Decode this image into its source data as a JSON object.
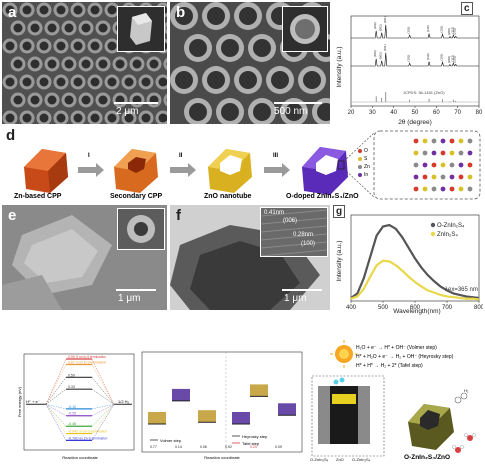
{
  "panels": {
    "a": {
      "label": "a",
      "scale": "2 μm"
    },
    "b": {
      "label": "b",
      "scale": "500 nm"
    },
    "c": {
      "label": "c"
    },
    "d": {
      "label": "d"
    },
    "e": {
      "label": "e",
      "scale": "1 μm"
    },
    "f": {
      "label": "f",
      "scale": "1 μm",
      "d1": "0.41nm",
      "hkl1": "(006)",
      "d2": "0.28nm",
      "hkl2": "(100)"
    },
    "g": {
      "label": "g"
    }
  },
  "schematic": {
    "steps": [
      {
        "caption": "Zn-based CPP",
        "arrow_after": "I"
      },
      {
        "caption": "Secondary CPP",
        "arrow_after": "II"
      },
      {
        "caption": "ZnO nanotube",
        "arrow_after": "III"
      },
      {
        "caption": "O-doped ZnIn₂S₄/ZnO",
        "arrow_after": ""
      }
    ],
    "legend": [
      "O",
      "S",
      "Zn",
      "In"
    ],
    "legend_colors": [
      "#d83a2a",
      "#d8c028",
      "#8a8a8a",
      "#7030a0"
    ]
  },
  "chart_data": [
    {
      "type": "line",
      "panel": "c",
      "xlabel": "2θ (degree)",
      "ylabel": "Intensity (a.u.)",
      "xlim": [
        20,
        80
      ],
      "xticks": [
        20,
        30,
        40,
        50,
        60,
        70,
        80
      ],
      "reference_label": "JCPDS: 36-1451 (ZnO)",
      "peak_positions": [
        31.8,
        34.4,
        36.3,
        47.5,
        56.6,
        62.9,
        66.4,
        68.0,
        69.1
      ],
      "peak_labels": [
        "(100)",
        "(002)",
        "(101)",
        "(102)",
        "(110)",
        "(103)",
        "(200)",
        "(112)",
        "(201)"
      ],
      "series": [
        {
          "values": [
            0.3,
            0.22,
            0.55,
            0.12,
            0.18,
            0.16,
            0.06,
            0.12,
            0.07
          ],
          "color": "#111111"
        },
        {
          "values": [
            0.3,
            0.22,
            0.55,
            0.12,
            0.18,
            0.16,
            0.06,
            0.12,
            0.07
          ],
          "color": "#111111"
        },
        {
          "values": [
            0.57,
            0.42,
            1.0,
            0.22,
            0.32,
            0.28,
            0.05,
            0.23,
            0.11
          ],
          "color": "#666666"
        }
      ]
    },
    {
      "type": "line",
      "panel": "g",
      "xlabel": "Wavelength(nm)",
      "ylabel": "Intensity (a.u.)",
      "xlim": [
        400,
        800
      ],
      "xticks": [
        400,
        500,
        600,
        700,
        800
      ],
      "annotation": "λex=365 nm",
      "series": [
        {
          "name": "O-ZnIn₂S₄",
          "color": "#555555",
          "x": [
            400,
            420,
            440,
            460,
            480,
            500,
            520,
            540,
            560,
            580,
            600,
            620,
            640,
            660,
            680,
            700,
            720,
            740,
            760,
            780,
            800
          ],
          "y": [
            0.04,
            0.1,
            0.3,
            0.58,
            0.86,
            0.98,
            1.0,
            0.95,
            0.84,
            0.7,
            0.56,
            0.44,
            0.34,
            0.26,
            0.19,
            0.14,
            0.1,
            0.08,
            0.06,
            0.05,
            0.04
          ]
        },
        {
          "name": "ZnIn₂S₄",
          "color": "#e8d84a",
          "x": [
            400,
            420,
            440,
            460,
            480,
            500,
            520,
            540,
            560,
            580,
            600,
            620,
            640,
            660,
            680,
            700,
            720,
            740,
            760,
            780,
            800
          ],
          "y": [
            0.03,
            0.06,
            0.16,
            0.32,
            0.47,
            0.53,
            0.52,
            0.47,
            0.4,
            0.32,
            0.25,
            0.19,
            0.14,
            0.11,
            0.08,
            0.06,
            0.05,
            0.04,
            0.03,
            0.03,
            0.02
          ]
        }
      ]
    },
    {
      "type": "line",
      "panel": "h1",
      "xlabel": "Reaction coordinate",
      "ylabel": "Free energy (eV)",
      "left_label": "H⁺ + e⁻",
      "right_label": "1/2 H₂",
      "levels": [
        {
          "value": 0.99,
          "color": "#d84040",
          "label": "S on In-S termination"
        },
        {
          "value": 0.87,
          "color": "#e89a3a",
          "label": "O on In-S termination"
        },
        {
          "value": 0.59,
          "color": "#333333",
          "label": ""
        },
        {
          "value": 0.33,
          "color": "#333333",
          "label": ""
        },
        {
          "value": -0.1,
          "color": "#2a8ad8",
          "label": ""
        },
        {
          "value": -0.25,
          "color": "#8a4ac8",
          "label": ""
        },
        {
          "value": -0.48,
          "color": "#3aa83a",
          "label": ""
        },
        {
          "value": -0.64,
          "color": "#e8c020",
          "label": "S on Zn-S termination"
        },
        {
          "value": -0.79,
          "color": "#3a3ad8",
          "label": "O on Zn-S termination"
        }
      ]
    },
    {
      "type": "line",
      "panel": "h2",
      "xlabel": "Reaction coordinate",
      "legend": [
        "Volmer step",
        "Heyrosky step",
        "Tafel step"
      ],
      "points": [
        0.77,
        0.14,
        0.06,
        0.92,
        0.29,
        0.09
      ]
    }
  ],
  "mechanism": {
    "steps": [
      "H₂O + e⁻ → H* + OH⁻ (Volmer step)",
      "H* + H₂O + e⁻ → H₂ + OH⁻ (Heyrosky step)",
      "H* + H* → H₂ + 2* (Tafel step)"
    ],
    "product": "H₂",
    "caption": "O-ZnIn₂S₄/ZnO",
    "cb_label": "CB",
    "bottom_labels": [
      "O-ZnIn₂S₄",
      "ZnO",
      "O-ZnIn₂S₄"
    ]
  }
}
